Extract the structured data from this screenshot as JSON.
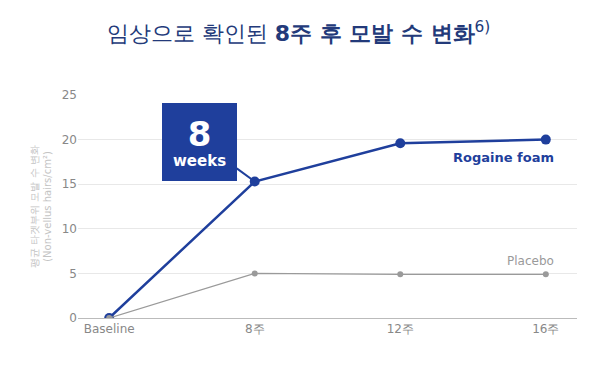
{
  "chart_data": {
    "type": "line",
    "title": "임상으로 확인된 8주 후 모발 수 변화",
    "title_note": "6)",
    "y_label": "평균 타겟부위 모발 수 변화 (Non-vellus hairs/cm²)",
    "categories": [
      "Baseline",
      "8주",
      "12주",
      "16주"
    ],
    "series": [
      {
        "name": "Rogaine foam",
        "color": "#1f3f9c",
        "marker": "circle",
        "values": [
          0,
          15.3,
          19.6,
          20
        ]
      },
      {
        "name": "Placebo",
        "color": "#9a9a9a",
        "marker": "circle",
        "values": [
          0,
          5,
          4.9,
          4.9
        ]
      }
    ],
    "annotations": [
      {
        "text": "8 weeks",
        "x": "8주"
      }
    ],
    "ylim": [
      0,
      25
    ],
    "yticks": [
      0,
      5,
      10,
      15,
      20,
      25
    ],
    "grid": true
  }
}
